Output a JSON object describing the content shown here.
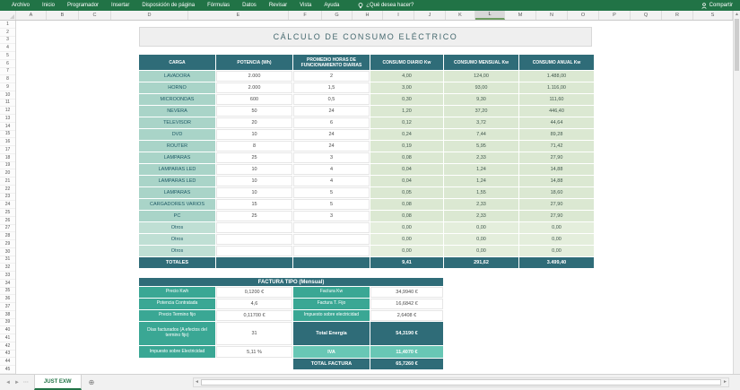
{
  "ribbon": {
    "tabs": [
      "Archivo",
      "Inicio",
      "Programador",
      "Insertar",
      "Disposición de página",
      "Fórmulas",
      "Datos",
      "Revisar",
      "Vista",
      "Ayuda"
    ],
    "search_label": "¿Qué desea hacer?",
    "share_label": "Compartir"
  },
  "grid": {
    "column_letters": [
      "A",
      "B",
      "C",
      "D",
      "E",
      "F",
      "G",
      "H",
      "I",
      "J",
      "K",
      "L",
      "M",
      "N",
      "O",
      "P",
      "Q",
      "R",
      "S"
    ],
    "selected_column": "L",
    "row_count": 45
  },
  "title": "CÁLCULO DE CONSUMO ELÉCTRICO",
  "consumption_table": {
    "headers": [
      "CARGA",
      "POTENCIA (Wh)",
      "PROMEDIO HORAS DE FUNCIONAMIENTO DIARIAS",
      "CONSUMO DIARIO Kw",
      "CONSUMO MENSUAL Kw",
      "CONSUMO ANUAL Kw"
    ],
    "rows": [
      [
        "LAVADORA",
        "2.000",
        "2",
        "4,00",
        "124,00",
        "1.488,00"
      ],
      [
        "HORNO",
        "2.000",
        "1,5",
        "3,00",
        "93,00",
        "1.116,00"
      ],
      [
        "MICROONDAS",
        "600",
        "0,5",
        "0,30",
        "9,30",
        "111,60"
      ],
      [
        "NEVERA",
        "50",
        "24",
        "1,20",
        "37,20",
        "446,40"
      ],
      [
        "TELEVISOR",
        "20",
        "6",
        "0,12",
        "3,72",
        "44,64"
      ],
      [
        "DVD",
        "10",
        "24",
        "0,24",
        "7,44",
        "89,28"
      ],
      [
        "ROUTER",
        "8",
        "24",
        "0,19",
        "5,95",
        "71,42"
      ],
      [
        "LAMPARAS",
        "25",
        "3",
        "0,08",
        "2,33",
        "27,90"
      ],
      [
        "LAMPARAS LED",
        "10",
        "4",
        "0,04",
        "1,24",
        "14,88"
      ],
      [
        "LAMPARAS LED",
        "10",
        "4",
        "0,04",
        "1,24",
        "14,88"
      ],
      [
        "LAMPARAS",
        "10",
        "5",
        "0,05",
        "1,55",
        "18,60"
      ],
      [
        "CARGADORES VARIOS",
        "15",
        "5",
        "0,08",
        "2,33",
        "27,90"
      ],
      [
        "PC",
        "25",
        "3",
        "0,08",
        "2,33",
        "27,90"
      ],
      [
        "Otros",
        "",
        "",
        "0,00",
        "0,00",
        "0,00"
      ],
      [
        "Otros",
        "",
        "",
        "0,00",
        "0,00",
        "0,00"
      ],
      [
        "Otros",
        "",
        "",
        "0,00",
        "0,00",
        "0,00"
      ]
    ],
    "totals": [
      "TOTALES",
      "",
      "",
      "9,41",
      "291,62",
      "3.499,40"
    ]
  },
  "invoice_table": {
    "title": "FACTURA TIPO (Mensual)",
    "left_rows": [
      {
        "label": "Precio Kwh",
        "value": "0,1200 €"
      },
      {
        "label": "Potencia Contratada",
        "value": "4,6"
      },
      {
        "label": "Precio Termino fijo",
        "value": "0,11700 €"
      },
      {
        "label": "Días facturados (A efectos del termino fijo)",
        "value": "31"
      },
      {
        "label": "Impuesto sobre Electricidad",
        "value": "5,11 %"
      }
    ],
    "right_rows": [
      {
        "label": "Factura Kw",
        "value": "34,9940 €",
        "style": "normal"
      },
      {
        "label": "Factura T. Fijo",
        "value": "16,6842 €",
        "style": "normal"
      },
      {
        "label": "Impuesto sobre electricidad",
        "value": "2,6408 €",
        "style": "normal"
      },
      {
        "label": "Total Energía",
        "value": "54,3190 €",
        "style": "dark"
      },
      {
        "label": "IVA",
        "value": "11,4070 €",
        "style": "light"
      },
      {
        "label": "TOTAL FACTURA",
        "value": "65,7260 €",
        "style": "dark"
      }
    ]
  },
  "sheet_bar": {
    "tab": "JUST EXW"
  },
  "colors": {
    "ribbon_green": "#217346",
    "header_teal": "#2F6C78",
    "label_teal": "#A9D4C8",
    "value_green": "#DBE8D2",
    "invoice_label_teal": "#3AA794",
    "invoice_light_teal": "#68C7B5",
    "title_bg": "#EFEFEF"
  }
}
